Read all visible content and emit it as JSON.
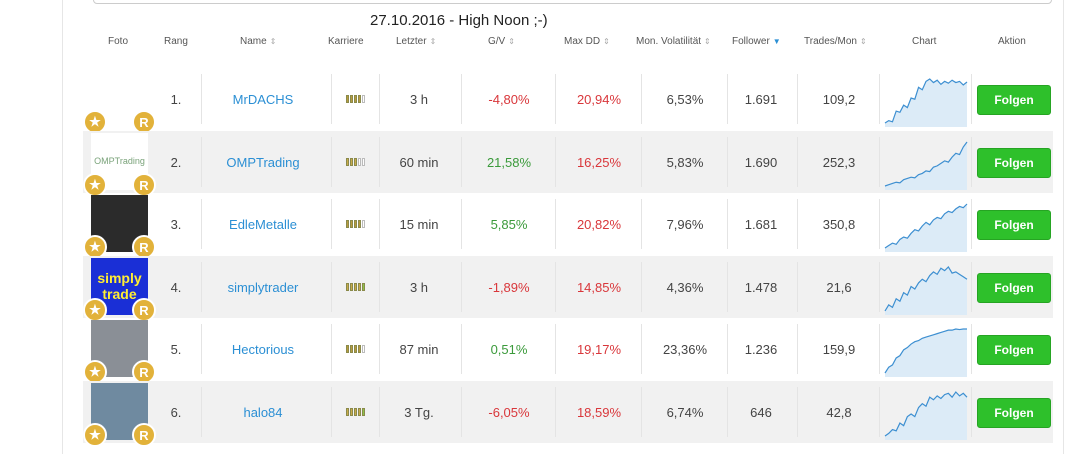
{
  "heading": "27.10.2016 - High Noon ;-)",
  "headers": {
    "photo": "Foto",
    "rank": "Rang",
    "name": "Name",
    "career": "Karriere",
    "last": "Letzter",
    "gv": "G/V",
    "maxdd": "Max DD",
    "vol": "Mon. Volatilität",
    "followers": "Follower",
    "trades": "Trades/Mon",
    "chart": "Chart",
    "action": "Aktion"
  },
  "sort_active": "followers",
  "colors": {
    "accent": "#2b8fd4",
    "negative": "#d9373b",
    "positive": "#3b9a3b",
    "button": "#2ec02b",
    "badge": "#e2b23a"
  },
  "rows": [
    {
      "rank": "1.",
      "name": "MrDACHS",
      "last": "3 h",
      "gv": "-4,80%",
      "gv_sign": "neg",
      "maxdd": "20,94%",
      "vol": "6,53%",
      "followers": "1.691",
      "trades": "109,2",
      "button": "Folgen",
      "photo": {
        "text": "",
        "bg": "#ffffff"
      },
      "career": [
        1,
        1,
        1,
        1,
        0
      ],
      "series": [
        10,
        14,
        12,
        30,
        28,
        40,
        36,
        52,
        50,
        70,
        66,
        80,
        84,
        78,
        82,
        75,
        80,
        77,
        82,
        78,
        80,
        74,
        79
      ]
    },
    {
      "rank": "2.",
      "name": "OMPTrading",
      "last": "60 min",
      "gv": "21,58%",
      "gv_sign": "pos",
      "maxdd": "16,25%",
      "vol": "5,83%",
      "followers": "1.690",
      "trades": "252,3",
      "button": "Folgen",
      "photo": {
        "text": "OMPTrading",
        "bg": "#ffffff"
      },
      "career": [
        1,
        1,
        1,
        0,
        0
      ],
      "series": [
        10,
        12,
        14,
        16,
        15,
        20,
        22,
        24,
        23,
        28,
        30,
        34,
        33,
        40,
        42,
        46,
        50,
        48,
        56,
        62,
        60,
        72,
        80
      ]
    },
    {
      "rank": "3.",
      "name": "EdleMetalle",
      "last": "15 min",
      "gv": "5,85%",
      "gv_sign": "pos",
      "maxdd": "20,82%",
      "vol": "7,96%",
      "followers": "1.681",
      "trades": "350,8",
      "button": "Folgen",
      "photo": {
        "text": "",
        "bg": "#2b2b2b"
      },
      "career": [
        1,
        1,
        1,
        1,
        0
      ],
      "series": [
        10,
        14,
        18,
        16,
        24,
        28,
        26,
        34,
        40,
        38,
        46,
        52,
        48,
        56,
        60,
        58,
        66,
        70,
        68,
        74,
        78,
        76,
        82
      ]
    },
    {
      "rank": "4.",
      "name": "simplytrader",
      "last": "3 h",
      "gv": "-1,89%",
      "gv_sign": "neg",
      "maxdd": "14,85%",
      "vol": "4,36%",
      "followers": "1.478",
      "trades": "21,6",
      "button": "Folgen",
      "photo": {
        "text": "simply trade",
        "bg": "#1a2fd6"
      },
      "career": [
        1,
        1,
        1,
        1,
        1
      ],
      "series": [
        10,
        20,
        16,
        30,
        26,
        40,
        36,
        50,
        46,
        56,
        62,
        58,
        68,
        74,
        70,
        80,
        76,
        82,
        72,
        74,
        70,
        66,
        62
      ]
    },
    {
      "rank": "5.",
      "name": "Hectorious",
      "last": "87 min",
      "gv": "0,51%",
      "gv_sign": "pos",
      "maxdd": "19,17%",
      "vol": "23,36%",
      "followers": "1.236",
      "trades": "159,9",
      "button": "Folgen",
      "photo": {
        "text": "",
        "bg": "#8a8f96"
      },
      "career": [
        1,
        1,
        1,
        1,
        0
      ],
      "series": [
        10,
        20,
        24,
        36,
        40,
        50,
        54,
        60,
        64,
        66,
        70,
        72,
        74,
        76,
        78,
        80,
        82,
        84,
        84,
        86,
        85,
        86,
        86
      ]
    },
    {
      "rank": "6.",
      "name": "halo84",
      "last": "3 Tg.",
      "gv": "-6,05%",
      "gv_sign": "neg",
      "maxdd": "18,59%",
      "vol": "6,74%",
      "followers": "646",
      "trades": "42,8",
      "button": "Folgen",
      "photo": {
        "text": "",
        "bg": "#6f8aa0"
      },
      "career": [
        1,
        1,
        1,
        1,
        1
      ],
      "series": [
        10,
        14,
        20,
        18,
        30,
        26,
        40,
        44,
        40,
        54,
        60,
        56,
        70,
        66,
        72,
        68,
        74,
        76,
        70,
        78,
        72,
        76,
        70
      ]
    }
  ]
}
